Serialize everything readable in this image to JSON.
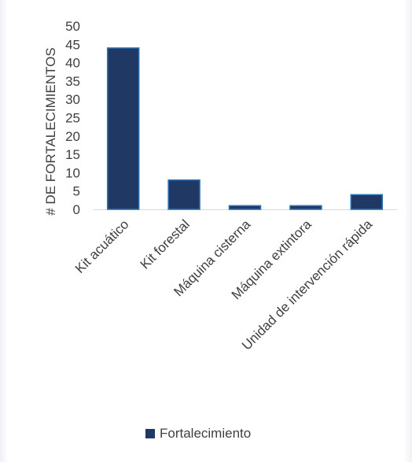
{
  "chart_data": {
    "type": "bar",
    "categories": [
      "Kit acuático",
      "Kit forestal",
      "Máquina cisterna",
      "Máquina extintora",
      "Unidad de intervención rápida"
    ],
    "series": [
      {
        "name": "Fortalecimiento",
        "values": [
          44,
          8,
          1,
          1,
          4
        ],
        "color": "#1f3864",
        "edge_color": "#2e75b6"
      }
    ],
    "ylabel": "# DE FORTALECIMIENTOS",
    "xlabel": "",
    "ylim": [
      0,
      50
    ],
    "yticks": [
      0,
      5,
      10,
      15,
      20,
      25,
      30,
      35,
      40,
      45,
      50
    ],
    "grid": false,
    "legend_position": "bottom"
  }
}
